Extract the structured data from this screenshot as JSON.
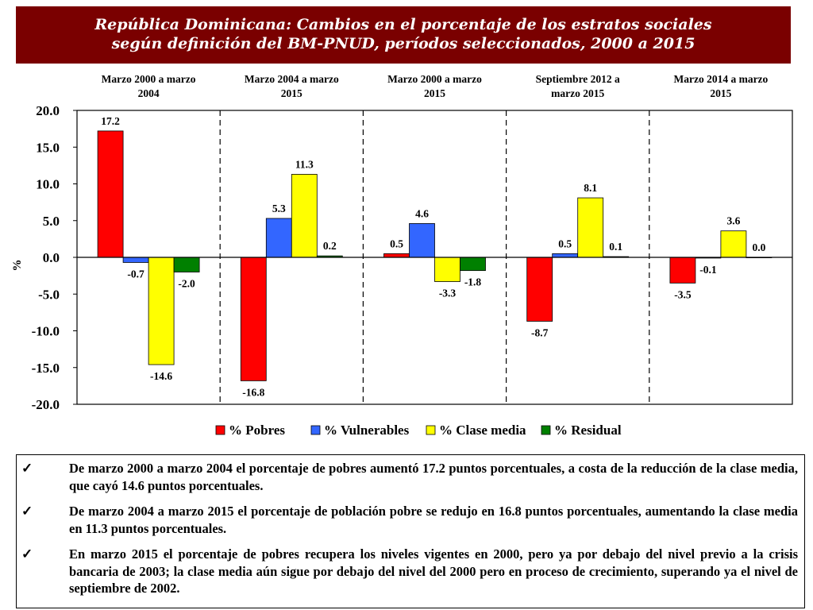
{
  "title": {
    "line1": "República Dominicana: Cambios en el porcentaje de los estratos sociales",
    "line2": "según definición del BM-PNUD, períodos  seleccionados, 2000 a 2015"
  },
  "chart_data": {
    "type": "bar",
    "ylabel": "%",
    "ylim": [
      -20,
      20
    ],
    "yticks": [
      "20.0",
      "15.0",
      "10.0",
      "5.0",
      "0.0",
      "-5.0",
      "-10.0",
      "-15.0",
      "-20.0"
    ],
    "grid": false,
    "legend_position": "bottom",
    "categories": [
      [
        "Marzo 2000 a marzo",
        "2004"
      ],
      [
        "Marzo 2004 a marzo",
        "2015"
      ],
      [
        "Marzo 2000 a marzo",
        "2015"
      ],
      [
        "Septiembre 2012 a",
        "marzo 2015"
      ],
      [
        "Marzo 2014 a marzo",
        "2015"
      ]
    ],
    "series": [
      {
        "name": "% Pobres",
        "color": "#ff0000",
        "values": [
          17.2,
          -16.8,
          0.5,
          -8.7,
          -3.5
        ],
        "labels": [
          "17.2",
          "-16.8",
          "0.5",
          "-8.7",
          "-3.5"
        ]
      },
      {
        "name": "% Vulnerables",
        "color": "#3366ff",
        "values": [
          -0.7,
          5.3,
          4.6,
          0.5,
          -0.1
        ],
        "labels": [
          "-0.7",
          "5.3",
          "4.6",
          "0.5",
          "-0.1"
        ]
      },
      {
        "name": "% Clase media",
        "color": "#ffff00",
        "values": [
          -14.6,
          11.3,
          -3.3,
          8.1,
          3.6
        ],
        "labels": [
          "-14.6",
          "11.3",
          "-3.3",
          "8.1",
          "3.6"
        ]
      },
      {
        "name": "% Residual",
        "color": "#008000",
        "values": [
          -2.0,
          0.2,
          -1.8,
          0.1,
          0.0
        ],
        "labels": [
          "-2.0",
          "0.2",
          "-1.8",
          "0.1",
          "0.0"
        ]
      }
    ]
  },
  "notes": [
    {
      "check": "✓",
      "text": "De marzo 2000 a marzo 2004 el porcentaje de pobres aumentó 17.2 puntos porcentuales, a costa de la reducción de la clase media, que cayó 14.6 puntos porcentuales."
    },
    {
      "check": "✓",
      "text": "De marzo 2004 a marzo 2015 el porcentaje de población pobre se redujo en 16.8 puntos porcentuales, aumentando la clase media en 11.3 puntos porcentuales."
    },
    {
      "check": "✓",
      "text": "En  marzo 2015 el porcentaje de pobres recupera los niveles vigentes en 2000, pero ya por debajo del nivel previo a la crisis bancaria de 2003; la clase media aún sigue por debajo del nivel del 2000 pero en proceso de crecimiento, superando ya el nivel de septiembre de 2002."
    }
  ]
}
